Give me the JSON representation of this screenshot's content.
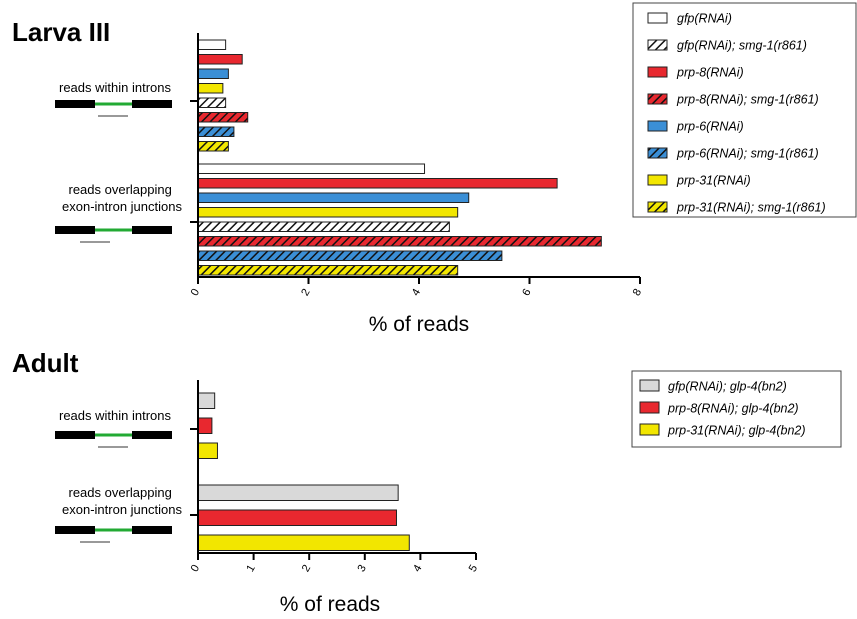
{
  "chart_data": [
    {
      "type": "bar",
      "orientation": "horizontal",
      "panel_title": "Larva III",
      "categories": [
        "reads within introns",
        "reads overlapping\nexon-intron junctions"
      ],
      "xlabel": "% of reads",
      "xlim": [
        0,
        8
      ],
      "xticks": [
        0,
        2,
        4,
        6,
        8
      ],
      "grid": false,
      "legend_position": "top-right",
      "series": [
        {
          "name": "gfp(RNAi)",
          "color": "#ffffff",
          "hatch": false,
          "values": [
            0.5,
            4.1
          ]
        },
        {
          "name": "prp-8(RNAi)",
          "color": "#e8282f",
          "hatch": false,
          "values": [
            0.8,
            6.5
          ]
        },
        {
          "name": "prp-6(RNAi)",
          "color": "#3b8fd6",
          "hatch": false,
          "values": [
            0.55,
            4.9
          ]
        },
        {
          "name": "prp-31(RNAi)",
          "color": "#f2e600",
          "hatch": false,
          "values": [
            0.45,
            4.7
          ]
        },
        {
          "name": "gfp(RNAi); smg-1(r861)",
          "color": "#ffffff",
          "hatch": true,
          "values": [
            0.5,
            4.55
          ]
        },
        {
          "name": "prp-8(RNAi); smg-1(r861)",
          "color": "#e8282f",
          "hatch": true,
          "values": [
            0.9,
            7.3
          ]
        },
        {
          "name": "prp-6(RNAi); smg-1(r861)",
          "color": "#3b8fd6",
          "hatch": true,
          "values": [
            0.65,
            5.5
          ]
        },
        {
          "name": "prp-31(RNAi); smg-1(r861)",
          "color": "#f2e600",
          "hatch": true,
          "values": [
            0.55,
            4.7
          ]
        }
      ],
      "legend_order": [
        "gfp(RNAi)",
        "gfp(RNAi); smg-1(r861)",
        "prp-8(RNAi)",
        "prp-8(RNAi); smg-1(r861)",
        "prp-6(RNAi)",
        "prp-6(RNAi); smg-1(r861)",
        "prp-31(RNAi)",
        "prp-31(RNAi); smg-1(r861)"
      ]
    },
    {
      "type": "bar",
      "orientation": "horizontal",
      "panel_title": "Adult",
      "categories": [
        "reads within introns",
        "reads overlapping\nexon-intron junctions"
      ],
      "xlabel": "% of reads",
      "xlim": [
        0,
        5
      ],
      "xticks": [
        0,
        1,
        2,
        3,
        4,
        5
      ],
      "grid": false,
      "legend_position": "top-right",
      "series": [
        {
          "name": "gfp(RNAi); glp-4(bn2)",
          "color": "#d9d9d9",
          "hatch": false,
          "values": [
            0.3,
            3.6
          ]
        },
        {
          "name": "prp-8(RNAi); glp-4(bn2)",
          "color": "#e8282f",
          "hatch": false,
          "values": [
            0.25,
            3.57
          ]
        },
        {
          "name": "prp-31(RNAi); glp-4(bn2)",
          "color": "#f2e600",
          "hatch": false,
          "values": [
            0.35,
            3.8
          ]
        }
      ],
      "legend_order": [
        "gfp(RNAi); glp-4(bn2)",
        "prp-8(RNAi); glp-4(bn2)",
        "prp-31(RNAi); glp-4(bn2)"
      ]
    }
  ]
}
